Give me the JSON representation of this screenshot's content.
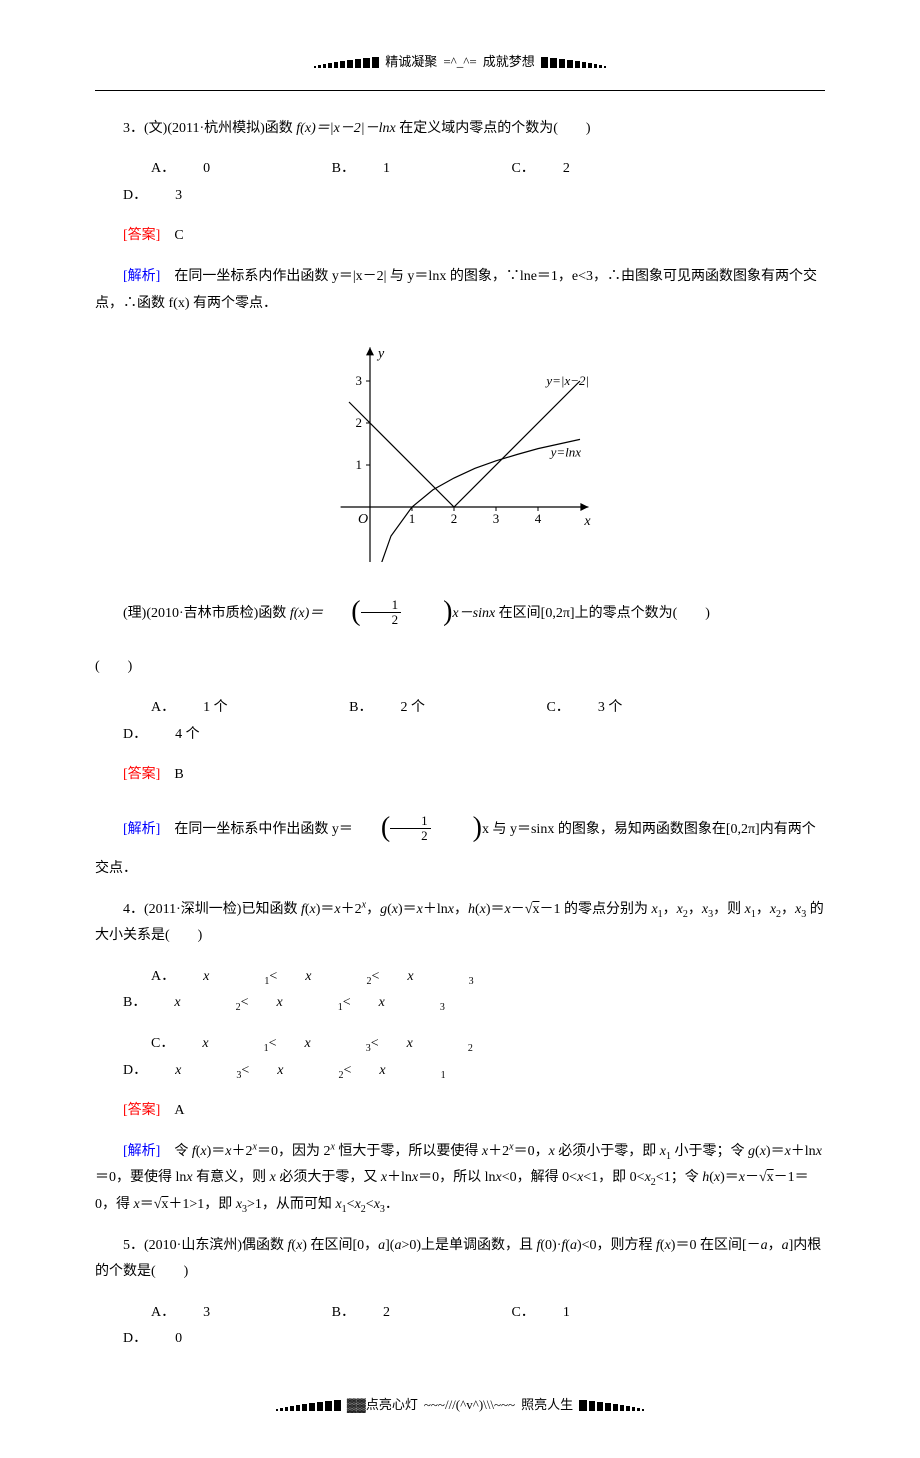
{
  "header": {
    "decor_bar_heights": [
      2,
      3,
      4,
      5,
      6,
      7,
      8,
      9,
      10,
      11
    ],
    "text_left": "精诚凝聚",
    "face": "=^_^=",
    "text_right": "成就梦想"
  },
  "footer": {
    "decor_bar_heights": [
      2,
      3,
      4,
      5,
      6,
      7,
      8,
      9,
      10,
      11
    ],
    "text_left": "▓▓点亮心灯",
    "face": "~~~///(^v^)\\\\\\~~~",
    "text_right": "照亮人生"
  },
  "q3wen": {
    "number": "3",
    "source": "(文)(2011·杭州模拟)",
    "stem_pre": "函数 ",
    "func": "f(x)＝|x－2|－lnx",
    "stem_post": "在定义域内零点的个数为(　　)",
    "options": {
      "A": "0",
      "B": "1",
      "C": "2",
      "D": "3"
    },
    "answer_label": "[答案]",
    "answer": "C",
    "analysis_label": "[解析]",
    "analysis_1": "在同一坐标系内作出函数 y＝|x－2| 与 y＝lnx 的图象，∵lne＝1，e<3，∴由图象可见两函数图象有两个交点，∴函数 f(x) 有两个零点．"
  },
  "chart": {
    "type": "line",
    "title": "",
    "x_axis_label": "x",
    "y_axis_label": "y",
    "origin_label": "O",
    "x_ticks": [
      1,
      2,
      3,
      4
    ],
    "y_ticks": [
      1,
      2,
      3
    ],
    "xlim": [
      -0.7,
      5.2
    ],
    "ylim": [
      -1.5,
      3.8
    ],
    "background_color": "#ffffff",
    "axis_color": "#000000",
    "tick_fontsize": 13,
    "label_fontsize": 14,
    "curves": [
      {
        "name": "y=|x-2|",
        "label": "y=|x−2|",
        "color": "#000000",
        "line_width": 1.2,
        "points": [
          [
            -0.5,
            2.5
          ],
          [
            2,
            0
          ],
          [
            5,
            3
          ]
        ]
      },
      {
        "name": "y=lnx",
        "label": "y=lnx",
        "color": "#000000",
        "line_width": 1.2,
        "points": [
          [
            0.25,
            -1.4
          ],
          [
            0.5,
            -0.69
          ],
          [
            1,
            0
          ],
          [
            1.5,
            0.41
          ],
          [
            2,
            0.69
          ],
          [
            2.5,
            0.92
          ],
          [
            3,
            1.1
          ],
          [
            3.5,
            1.25
          ],
          [
            4,
            1.39
          ],
          [
            4.5,
            1.5
          ],
          [
            5,
            1.61
          ]
        ]
      }
    ]
  },
  "q3li": {
    "source": "(理)(2010·吉林市质检)",
    "stem_pre": "函数 ",
    "func_pre": "f(x)＝",
    "frac_num": "1",
    "frac_den": "2",
    "func_mid": "x－sinx",
    "stem_post": " 在区间[0,2π]上的零点个数为(　　)",
    "options": {
      "A": "1 个",
      "B": "2 个",
      "C": "3 个",
      "D": "4 个"
    },
    "answer_label": "[答案]",
    "answer": "B",
    "analysis_label": "[解析]",
    "analysis_1_pre": "在同一坐标系中作出函数 y＝",
    "analysis_1_mid": "x 与 y＝sinx 的图象，易知两函数图象在[0,2π]内有两个交点．"
  },
  "q4": {
    "number": "4",
    "source": "(2011·深圳一检)",
    "stem": "已知函数 f(x)＝x＋2ˣ，g(x)＝x＋lnx，h(x)＝x－√x－1 的零点分别为 x₁，x₂，x₃，则 x₁，x₂，x₃ 的大小关系是(　　)",
    "options": {
      "A": "x₁<x₂<x₃",
      "B": "x₂<x₁<x₃",
      "C": "x₁<x₃<x₂",
      "D": "x₃<x₂<x₁"
    },
    "answer_label": "[答案]",
    "answer": "A",
    "analysis_label": "[解析]",
    "analysis": "令 f(x)＝x＋2ˣ＝0，因为 2ˣ 恒大于零，所以要使得 x＋2ˣ＝0，x 必须小于零，即 x₁ 小于零；令 g(x)＝x＋lnx＝0，要使得 lnx 有意义，则 x 必须大于零，又 x＋lnx＝0，所以 lnx<0，解得 0<x<1，即 0<x₂<1；令 h(x)＝x－√x－1＝0，得 x＝√x＋1>1，即 x₃>1，从而可知 x₁<x₂<x₃．"
  },
  "q5": {
    "number": "5",
    "source": "(2010·山东滨州)",
    "stem": "偶函数 f(x) 在区间[0，a](a>0)上是单调函数，且 f(0)·f(a)<0，则方程 f(x)＝0 在区间[－a，a]内根的个数是(　　)",
    "options": {
      "A": "3",
      "B": "2",
      "C": "1",
      "D": "0"
    }
  },
  "colors": {
    "text": "#000000",
    "answer": "#ff0000",
    "analysis": "#0000ff",
    "background": "#ffffff"
  }
}
